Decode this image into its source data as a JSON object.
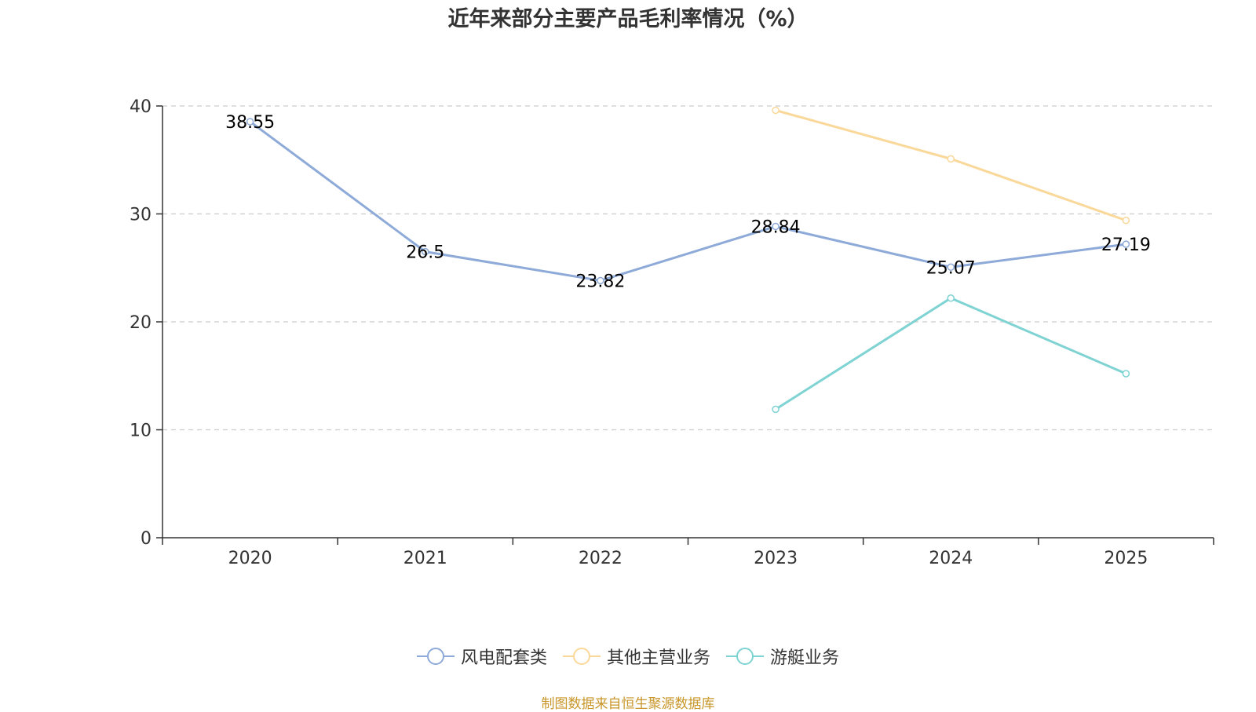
{
  "colors": {
    "series_1": "#8eaad8",
    "series_2": "#fad89a",
    "series_3": "#7fd3d3",
    "grid": "#cccccc",
    "axis": "#333333",
    "source_text": "#c8962a"
  },
  "source": "制图数据来自恒生聚源数据库",
  "chart_data": {
    "type": "line",
    "title": "近年来部分主要产品毛利率情况（%）",
    "categories": [
      "2020",
      "2021",
      "2022",
      "2023",
      "2024",
      "2025"
    ],
    "ylim": [
      0,
      40
    ],
    "yticks": [
      0,
      10,
      20,
      30,
      40
    ],
    "grid": true,
    "legend_position": "bottom",
    "xlabel": "",
    "ylabel": "",
    "series": [
      {
        "name": "风电配套类",
        "values": [
          38.55,
          26.5,
          23.82,
          28.84,
          25.07,
          27.19
        ],
        "labels": [
          "38.55",
          "26.5",
          "23.82",
          "28.84",
          "25.07",
          "27.19"
        ],
        "show_labels": true
      },
      {
        "name": "其他主营业务",
        "values": [
          null,
          null,
          null,
          39.6,
          35.1,
          29.4
        ],
        "show_labels": false
      },
      {
        "name": "游艇业务",
        "values": [
          null,
          null,
          null,
          11.9,
          22.2,
          15.2
        ],
        "show_labels": false
      }
    ]
  }
}
